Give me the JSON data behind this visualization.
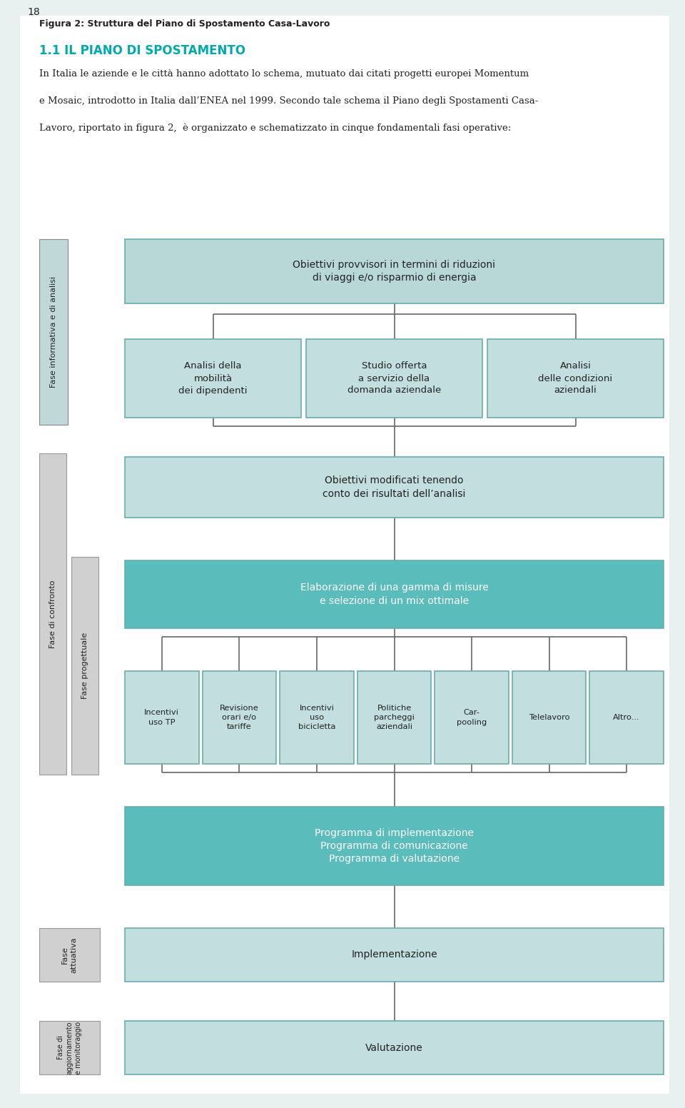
{
  "page_bg": "#e8f0f0",
  "content_bg": "#ffffff",
  "title_color": "#00aaaa",
  "title_text": "1.1 IL PIANO DI SPOSTAMENTO",
  "fig_caption": "Figura 2: Struttura del Piano di Spostamento Casa-Lavoro",
  "page_number": "18",
  "color_light_teal": "#b8d8d8",
  "color_medium_teal": "#5bbcbc",
  "color_box_fill": "#c2dede",
  "color_box_border": "#6aacac",
  "color_elab_fill": "#5bbcbc",
  "color_prog_fill": "#5bbcbc",
  "color_gray_label": "#d0d0d0",
  "color_gray_border": "#999999",
  "color_line": "#666666",
  "body_lines": [
    "In Italia le aziende e le città hanno adottato lo schema, mutuato dai citati progetti europei Momentum",
    "e Mosaic, introdotto in Italia dall’ENEA nel 1999. Secondo tale schema il Piano degli Spostamenti Casa-",
    "Lavoro, riportato in figura 2,  è organizzato e schematizzato in cinque fondamentali fasi operative:"
  ],
  "small_box_labels": [
    "Incentivi\nuso TP",
    "Revisione\norari e/o\ntariffe",
    "Incentivi\nuso\nbicicletta",
    "Politiche\nparcheggi\naziendali",
    "Car-\npooling",
    "Telelavoro",
    "Altro..."
  ]
}
